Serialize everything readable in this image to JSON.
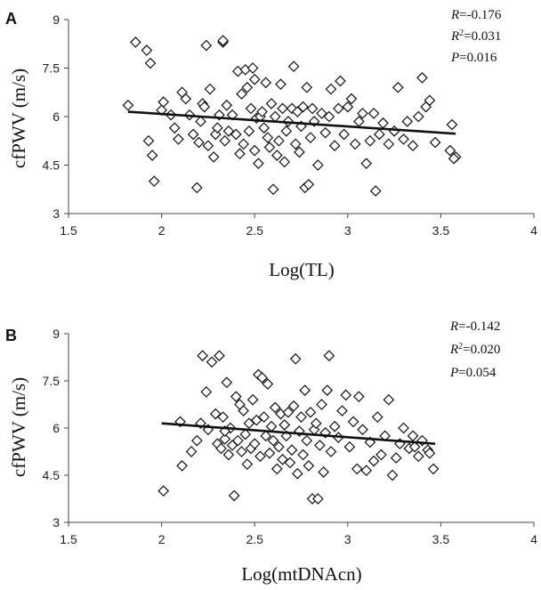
{
  "chart_data": [
    {
      "type": "scatter",
      "panel_label": "A",
      "ylabel": "cfPWV (m/s)",
      "xlabel": "Log(TL)",
      "xlim": [
        1.5,
        4
      ],
      "ylim": [
        3,
        9
      ],
      "xticks": [
        1.5,
        2,
        2.5,
        3,
        3.5,
        4
      ],
      "yticks": [
        3,
        4.5,
        6,
        7.5,
        9
      ],
      "xtick_labels": [
        "1.5",
        "2",
        "2.5",
        "3",
        "3.5",
        "4"
      ],
      "ytick_labels": [
        "3",
        "4.5",
        "6",
        "7.5",
        "9"
      ],
      "stats": {
        "r_symbol": "R",
        "r_value": "=-0.176",
        "r2_symbol": "R",
        "r2_sup": "2",
        "r2_value": "=0.031",
        "p_symbol": "P",
        "p_value": "=0.016"
      },
      "trendline": {
        "x": [
          1.82,
          3.58
        ],
        "y": [
          6.15,
          5.47
        ]
      },
      "points": [
        [
          1.82,
          6.35
        ],
        [
          1.86,
          8.3
        ],
        [
          1.92,
          8.05
        ],
        [
          1.94,
          7.65
        ],
        [
          1.96,
          4.0
        ],
        [
          1.93,
          5.25
        ],
        [
          1.95,
          4.8
        ],
        [
          2.0,
          6.2
        ],
        [
          2.01,
          6.45
        ],
        [
          2.05,
          6.05
        ],
        [
          2.07,
          5.65
        ],
        [
          2.09,
          5.3
        ],
        [
          2.11,
          6.75
        ],
        [
          2.13,
          6.55
        ],
        [
          2.15,
          6.05
        ],
        [
          2.17,
          5.45
        ],
        [
          2.19,
          3.8
        ],
        [
          2.2,
          5.2
        ],
        [
          2.21,
          5.85
        ],
        [
          2.22,
          6.4
        ],
        [
          2.23,
          6.3
        ],
        [
          2.25,
          5.1
        ],
        [
          2.24,
          8.2
        ],
        [
          2.26,
          6.85
        ],
        [
          2.28,
          4.75
        ],
        [
          2.29,
          5.45
        ],
        [
          2.3,
          5.65
        ],
        [
          2.31,
          6.05
        ],
        [
          2.33,
          8.3
        ],
        [
          2.33,
          8.35
        ],
        [
          2.34,
          5.25
        ],
        [
          2.35,
          6.35
        ],
        [
          2.36,
          5.55
        ],
        [
          2.38,
          6.05
        ],
        [
          2.4,
          5.45
        ],
        [
          2.41,
          7.4
        ],
        [
          2.42,
          4.85
        ],
        [
          2.43,
          6.7
        ],
        [
          2.44,
          5.15
        ],
        [
          2.45,
          7.45
        ],
        [
          2.46,
          6.9
        ],
        [
          2.47,
          5.55
        ],
        [
          2.48,
          6.25
        ],
        [
          2.49,
          7.5
        ],
        [
          2.5,
          4.95
        ],
        [
          2.5,
          7.15
        ],
        [
          2.51,
          5.95
        ],
        [
          2.52,
          4.55
        ],
        [
          2.53,
          6.0
        ],
        [
          2.54,
          6.15
        ],
        [
          2.55,
          5.65
        ],
        [
          2.56,
          7.05
        ],
        [
          2.57,
          5.35
        ],
        [
          2.58,
          5.05
        ],
        [
          2.59,
          6.4
        ],
        [
          2.6,
          3.75
        ],
        [
          2.61,
          6.0
        ],
        [
          2.62,
          4.8
        ],
        [
          2.63,
          5.25
        ],
        [
          2.64,
          7.0
        ],
        [
          2.65,
          6.25
        ],
        [
          2.66,
          4.6
        ],
        [
          2.67,
          5.55
        ],
        [
          2.68,
          5.85
        ],
        [
          2.7,
          6.25
        ],
        [
          2.71,
          7.55
        ],
        [
          2.72,
          5.15
        ],
        [
          2.73,
          6.15
        ],
        [
          2.74,
          4.9
        ],
        [
          2.75,
          5.7
        ],
        [
          2.76,
          6.3
        ],
        [
          2.77,
          3.8
        ],
        [
          2.78,
          6.9
        ],
        [
          2.79,
          3.9
        ],
        [
          2.8,
          5.35
        ],
        [
          2.81,
          6.25
        ],
        [
          2.82,
          5.85
        ],
        [
          2.84,
          4.5
        ],
        [
          2.86,
          6.1
        ],
        [
          2.88,
          5.5
        ],
        [
          2.9,
          6.0
        ],
        [
          2.91,
          6.85
        ],
        [
          2.93,
          5.1
        ],
        [
          2.95,
          6.25
        ],
        [
          2.96,
          7.1
        ],
        [
          2.98,
          5.45
        ],
        [
          3.0,
          6.3
        ],
        [
          3.02,
          6.55
        ],
        [
          3.04,
          5.15
        ],
        [
          3.06,
          5.85
        ],
        [
          3.08,
          6.1
        ],
        [
          3.1,
          4.55
        ],
        [
          3.12,
          5.25
        ],
        [
          3.14,
          6.1
        ],
        [
          3.15,
          3.7
        ],
        [
          3.17,
          5.45
        ],
        [
          3.19,
          5.8
        ],
        [
          3.22,
          5.15
        ],
        [
          3.25,
          5.55
        ],
        [
          3.27,
          6.9
        ],
        [
          3.3,
          5.3
        ],
        [
          3.32,
          5.85
        ],
        [
          3.35,
          5.1
        ],
        [
          3.38,
          6.0
        ],
        [
          3.4,
          7.2
        ],
        [
          3.42,
          6.3
        ],
        [
          3.44,
          6.5
        ],
        [
          3.47,
          5.2
        ],
        [
          3.55,
          4.95
        ],
        [
          3.56,
          5.75
        ],
        [
          3.58,
          4.75
        ],
        [
          3.57,
          4.7
        ]
      ]
    },
    {
      "type": "scatter",
      "panel_label": "B",
      "ylabel": "cfPWV (m/s)",
      "xlabel": "Log(mtDNAcn)",
      "xlim": [
        1.5,
        4
      ],
      "ylim": [
        3,
        9
      ],
      "xticks": [
        1.5,
        2,
        2.5,
        3,
        3.5,
        4
      ],
      "yticks": [
        3,
        4.5,
        6,
        7.5,
        9
      ],
      "xtick_labels": [
        "1.5",
        "2",
        "2.5",
        "3",
        "3.5",
        "4"
      ],
      "ytick_labels": [
        "3",
        "4.5",
        "6",
        "7.5",
        "9"
      ],
      "stats": {
        "r_symbol": "R",
        "r_value": "=-0.142",
        "r2_symbol": "R",
        "r2_sup": "2",
        "r2_value": "=0.020",
        "p_symbol": "P",
        "p_value": "=0.054"
      },
      "trendline": {
        "x": [
          2.0,
          3.47
        ],
        "y": [
          6.15,
          5.5
        ]
      },
      "points": [
        [
          2.01,
          4.0
        ],
        [
          2.1,
          6.2
        ],
        [
          2.11,
          4.8
        ],
        [
          2.16,
          5.25
        ],
        [
          2.19,
          5.6
        ],
        [
          2.21,
          6.15
        ],
        [
          2.22,
          8.3
        ],
        [
          2.24,
          7.15
        ],
        [
          2.25,
          5.95
        ],
        [
          2.27,
          8.1
        ],
        [
          2.29,
          6.45
        ],
        [
          2.3,
          5.5
        ],
        [
          2.31,
          8.3
        ],
        [
          2.32,
          5.35
        ],
        [
          2.33,
          6.35
        ],
        [
          2.34,
          5.65
        ],
        [
          2.35,
          7.45
        ],
        [
          2.36,
          5.15
        ],
        [
          2.37,
          6.0
        ],
        [
          2.38,
          5.45
        ],
        [
          2.39,
          3.85
        ],
        [
          2.4,
          7.0
        ],
        [
          2.41,
          5.6
        ],
        [
          2.42,
          6.75
        ],
        [
          2.43,
          5.25
        ],
        [
          2.44,
          6.55
        ],
        [
          2.45,
          5.8
        ],
        [
          2.46,
          4.85
        ],
        [
          2.47,
          6.15
        ],
        [
          2.48,
          5.35
        ],
        [
          2.49,
          6.9
        ],
        [
          2.5,
          5.5
        ],
        [
          2.51,
          6.25
        ],
        [
          2.52,
          7.7
        ],
        [
          2.53,
          5.1
        ],
        [
          2.54,
          7.6
        ],
        [
          2.55,
          6.35
        ],
        [
          2.56,
          5.75
        ],
        [
          2.57,
          7.4
        ],
        [
          2.58,
          5.2
        ],
        [
          2.59,
          6.05
        ],
        [
          2.6,
          5.6
        ],
        [
          2.61,
          6.65
        ],
        [
          2.62,
          4.7
        ],
        [
          2.63,
          5.4
        ],
        [
          2.64,
          6.45
        ],
        [
          2.65,
          5.0
        ],
        [
          2.66,
          6.1
        ],
        [
          2.67,
          5.75
        ],
        [
          2.68,
          6.5
        ],
        [
          2.69,
          4.9
        ],
        [
          2.7,
          5.3
        ],
        [
          2.71,
          6.7
        ],
        [
          2.72,
          8.2
        ],
        [
          2.73,
          4.55
        ],
        [
          2.74,
          5.9
        ],
        [
          2.75,
          6.35
        ],
        [
          2.76,
          5.15
        ],
        [
          2.77,
          7.2
        ],
        [
          2.78,
          5.6
        ],
        [
          2.79,
          4.8
        ],
        [
          2.8,
          6.5
        ],
        [
          2.81,
          3.75
        ],
        [
          2.82,
          5.95
        ],
        [
          2.83,
          6.15
        ],
        [
          2.84,
          3.75
        ],
        [
          2.85,
          5.45
        ],
        [
          2.86,
          6.75
        ],
        [
          2.87,
          4.6
        ],
        [
          2.88,
          5.85
        ],
        [
          2.89,
          7.2
        ],
        [
          2.9,
          8.3
        ],
        [
          2.91,
          5.25
        ],
        [
          2.93,
          6.05
        ],
        [
          2.95,
          5.7
        ],
        [
          2.97,
          6.55
        ],
        [
          2.99,
          7.05
        ],
        [
          3.01,
          5.4
        ],
        [
          3.03,
          6.2
        ],
        [
          3.05,
          4.7
        ],
        [
          3.06,
          7.0
        ],
        [
          3.08,
          5.95
        ],
        [
          3.1,
          4.65
        ],
        [
          3.12,
          5.55
        ],
        [
          3.14,
          4.95
        ],
        [
          3.16,
          6.35
        ],
        [
          3.18,
          5.15
        ],
        [
          3.2,
          5.75
        ],
        [
          3.22,
          6.9
        ],
        [
          3.24,
          4.5
        ],
        [
          3.26,
          5.05
        ],
        [
          3.28,
          5.5
        ],
        [
          3.3,
          6.0
        ],
        [
          3.33,
          5.35
        ],
        [
          3.35,
          5.75
        ],
        [
          3.38,
          5.1
        ],
        [
          3.4,
          5.6
        ],
        [
          3.43,
          5.3
        ],
        [
          3.46,
          4.7
        ],
        [
          3.36,
          5.4
        ],
        [
          3.44,
          5.2
        ],
        [
          2.34,
          5.9
        ]
      ]
    }
  ]
}
